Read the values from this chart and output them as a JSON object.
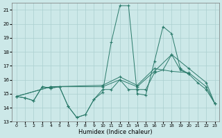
{
  "xlabel": "Humidex (Indice chaleur)",
  "xlim": [
    -0.5,
    23.5
  ],
  "ylim": [
    13,
    21.5
  ],
  "yticks": [
    13,
    14,
    15,
    16,
    17,
    18,
    19,
    20,
    21
  ],
  "xticks": [
    0,
    1,
    2,
    3,
    4,
    5,
    6,
    7,
    8,
    9,
    10,
    11,
    12,
    13,
    14,
    15,
    16,
    17,
    18,
    19,
    20,
    21,
    22,
    23
  ],
  "bg_color": "#cce8e8",
  "line_color": "#2a7a6a",
  "grid_color": "#aacfcf",
  "lines": [
    {
      "x": [
        0,
        1,
        2,
        3,
        4,
        5,
        6,
        7,
        8,
        9,
        10,
        11,
        12,
        13,
        14,
        15,
        16,
        17,
        18,
        19,
        20,
        21,
        22,
        23
      ],
      "y": [
        14.8,
        14.7,
        14.5,
        15.5,
        15.4,
        15.5,
        14.1,
        13.3,
        13.5,
        14.6,
        15.1,
        18.7,
        21.3,
        21.3,
        15.0,
        14.9,
        17.3,
        19.8,
        19.3,
        16.8,
        16.4,
        null,
        null,
        null
      ]
    },
    {
      "x": [
        0,
        1,
        2,
        3,
        4,
        5,
        6,
        7,
        8,
        9,
        10,
        11,
        12,
        13,
        14,
        15,
        16,
        17,
        18,
        19,
        20,
        21,
        22,
        23
      ],
      "y": [
        14.8,
        14.7,
        14.5,
        15.5,
        15.4,
        15.5,
        14.1,
        13.3,
        13.5,
        14.6,
        15.3,
        15.3,
        16.0,
        15.3,
        15.3,
        15.3,
        16.5,
        16.7,
        17.8,
        16.7,
        16.4,
        15.8,
        15.3,
        14.3
      ]
    },
    {
      "x": [
        0,
        4,
        10,
        12,
        14,
        16,
        18,
        20,
        22,
        23
      ],
      "y": [
        14.8,
        15.5,
        15.5,
        16.0,
        15.5,
        16.6,
        17.8,
        16.8,
        15.8,
        14.3
      ]
    },
    {
      "x": [
        0,
        4,
        10,
        12,
        14,
        16,
        18,
        20,
        22,
        23
      ],
      "y": [
        14.8,
        15.5,
        15.6,
        16.2,
        15.6,
        16.8,
        16.6,
        16.5,
        15.5,
        14.3
      ]
    }
  ]
}
